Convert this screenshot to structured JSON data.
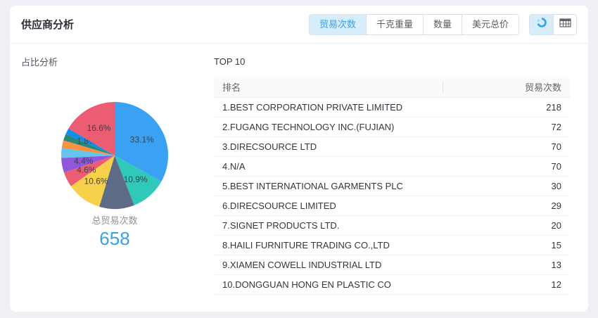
{
  "colors": {
    "accent_blue": "#3aa1e3",
    "active_tab_bg": "#d6edfb",
    "page_bg": "#eef0f6",
    "panel_bg": "#ffffff",
    "table_header_bg": "#fafafa"
  },
  "header": {
    "title": "供应商分析",
    "tabs": [
      {
        "label": "贸易次数",
        "active": true
      },
      {
        "label": "千克重量",
        "active": false
      },
      {
        "label": "数量",
        "active": false
      },
      {
        "label": "美元总价",
        "active": false
      }
    ],
    "view_toggles": [
      {
        "icon": "pie-chart-icon",
        "active": true
      },
      {
        "icon": "table-icon",
        "active": false
      }
    ]
  },
  "proportion": {
    "title": "占比分析",
    "total_label": "总贸易次数",
    "total_value": "658"
  },
  "top10": {
    "title": "TOP 10",
    "columns": {
      "rank": "排名",
      "value": "贸易次数"
    },
    "rows": [
      {
        "rank": "1.BEST CORPORATION PRIVATE LIMITED",
        "value": "218"
      },
      {
        "rank": "2.FUGANG TECHNOLOGY INC.(FUJIAN)",
        "value": "72"
      },
      {
        "rank": "3.DIRECSOURCE LTD",
        "value": "70"
      },
      {
        "rank": "4.N/A",
        "value": "70"
      },
      {
        "rank": "5.BEST INTERNATIONAL GARMENTS PLC",
        "value": "30"
      },
      {
        "rank": "6.DIRECSOURCE LIMITED",
        "value": "29"
      },
      {
        "rank": "7.SIGNET PRODUCTS LTD.",
        "value": "20"
      },
      {
        "rank": "8.HAILI FURNITURE TRADING CO.,LTD",
        "value": "15"
      },
      {
        "rank": "9.XIAMEN COWELL INDUSTRIAL LTD",
        "value": "13"
      },
      {
        "rank": "10.DONGGUAN HONG EN PLASTIC CO",
        "value": "12"
      }
    ]
  },
  "chart_data": {
    "type": "pie",
    "title": "占比分析",
    "center_label": "总贸易次数",
    "total_value": 658,
    "start_angle": "top",
    "direction": "clockwise",
    "slices": [
      {
        "pct": 33.1,
        "label": "33.1%",
        "show_label": true,
        "color": "#3ba1f2"
      },
      {
        "pct": 10.9,
        "label": "10.9%",
        "show_label": true,
        "color": "#2fc9b9"
      },
      {
        "pct": 10.6,
        "label": "10.6%",
        "show_label": false,
        "color": "#5d6b85"
      },
      {
        "pct": 10.6,
        "label": "10.6%",
        "show_label": true,
        "color": "#f8d14b"
      },
      {
        "pct": 4.6,
        "label": "4.6%",
        "show_label": true,
        "color": "#ec5c72"
      },
      {
        "pct": 4.4,
        "label": "4.4%",
        "show_label": true,
        "color": "#9057dc"
      },
      {
        "pct": 3.0,
        "label": "3.0%",
        "show_label": false,
        "color": "#63c5ec"
      },
      {
        "pct": 2.3,
        "label": "2.3%",
        "show_label": false,
        "color": "#f8923f"
      },
      {
        "pct": 2.0,
        "label": "2.0%",
        "show_label": false,
        "color": "#28897a"
      },
      {
        "pct": 1.8,
        "label": "1.8%",
        "show_label": true,
        "color": "#0f90e8"
      },
      {
        "pct": 16.6,
        "label": "16.6%",
        "show_label": true,
        "color": "#ec5c72"
      }
    ]
  }
}
